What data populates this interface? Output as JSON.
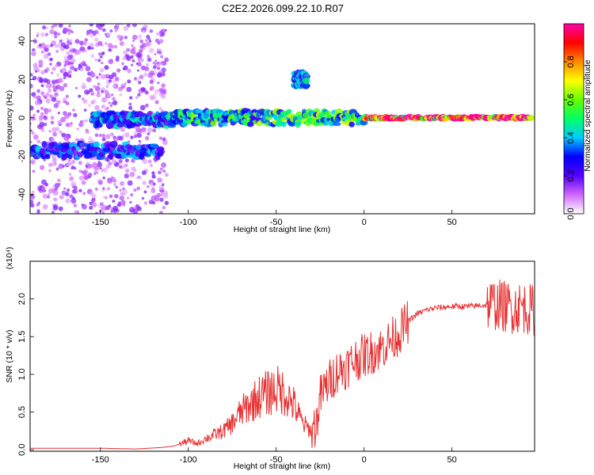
{
  "figure": {
    "title": "C2E2.2026.099.22.10.R07"
  },
  "chart_data": [
    {
      "type": "heatmap",
      "xlabel": "Height of straight line (km)",
      "ylabel": "Frequency (Hz)",
      "xlim": [
        -190,
        97
      ],
      "ylim": [
        -50,
        49
      ],
      "xticks": [
        -150,
        -100,
        -50,
        0,
        50
      ],
      "yticks": [
        -40,
        -20,
        0,
        20,
        40
      ],
      "colorbar": {
        "label": "Normalized spectral amplitude",
        "range": [
          0,
          1
        ],
        "ticks": [
          0.0,
          0.2,
          0.4,
          0.6,
          0.8
        ],
        "colormap": [
          "#ffffff",
          "#cf66ff",
          "#5500ff",
          "#0000ff",
          "#00ccff",
          "#00ff66",
          "#66ff00",
          "#ffff00",
          "#ff8800",
          "#ff0000",
          "#ff00aa"
        ]
      },
      "features": [
        {
          "x_range": [
            -190,
            -112
          ],
          "y_range": [
            -50,
            49
          ],
          "amplitude": 0.1,
          "kind": "scatter-noise"
        },
        {
          "x_range": [
            -190,
            -115
          ],
          "y_center": -17,
          "amplitude": 0.3,
          "kind": "band"
        },
        {
          "x_range": [
            -155,
            -108
          ],
          "y_center": -1,
          "amplitude": 0.35,
          "kind": "band"
        },
        {
          "x_range": [
            -108,
            -60
          ],
          "y_center": 0,
          "amplitude": 0.45,
          "kind": "band"
        },
        {
          "x_range": [
            -60,
            0
          ],
          "y_center": 0,
          "amplitude": 0.5,
          "kind": "band"
        },
        {
          "x_range": [
            0,
            95
          ],
          "y_center": 0,
          "amplitude": 0.95,
          "kind": "carrier"
        },
        {
          "x_range": [
            -40,
            -33
          ],
          "y_center": 20,
          "amplitude": 0.35,
          "kind": "branch"
        }
      ]
    },
    {
      "type": "line",
      "xlabel": "Height of straight line (km)",
      "ylabel": "SNR (10 * v/v)",
      "y_multiplier": "(x10⁴)",
      "xlim": [
        -190,
        97
      ],
      "ylim": [
        -0.02,
        2.5
      ],
      "xticks": [
        -150,
        -100,
        -50,
        0,
        50
      ],
      "yticks": [
        0.0,
        0.5,
        1.0,
        1.5,
        2.0
      ],
      "series": [
        {
          "color": "#e83030",
          "points": [
            [
              -190,
              0.02
            ],
            [
              -170,
              0.02
            ],
            [
              -150,
              0.02
            ],
            [
              -130,
              0.01
            ],
            [
              -115,
              0.03
            ],
            [
              -108,
              0.05
            ],
            [
              -100,
              0.12
            ],
            [
              -95,
              0.08
            ],
            [
              -90,
              0.15
            ],
            [
              -85,
              0.2
            ],
            [
              -80,
              0.25
            ],
            [
              -75,
              0.35
            ],
            [
              -70,
              0.5
            ],
            [
              -65,
              0.6
            ],
            [
              -60,
              0.7
            ],
            [
              -55,
              0.75
            ],
            [
              -50,
              0.8
            ],
            [
              -45,
              0.75
            ],
            [
              -40,
              0.6
            ],
            [
              -35,
              0.35
            ],
            [
              -30,
              0.25
            ],
            [
              -27,
              0.35
            ],
            [
              -25,
              0.7
            ],
            [
              -20,
              0.9
            ],
            [
              -15,
              1.05
            ],
            [
              -10,
              1.1
            ],
            [
              -5,
              1.2
            ],
            [
              0,
              1.25
            ],
            [
              5,
              1.3
            ],
            [
              10,
              1.35
            ],
            [
              15,
              1.45
            ],
            [
              20,
              1.55
            ],
            [
              25,
              1.7
            ],
            [
              30,
              1.8
            ],
            [
              35,
              1.85
            ],
            [
              40,
              1.88
            ],
            [
              50,
              1.9
            ],
            [
              60,
              1.9
            ],
            [
              70,
              1.92
            ],
            [
              75,
              1.93
            ],
            [
              80,
              1.9
            ],
            [
              85,
              1.88
            ],
            [
              90,
              1.9
            ],
            [
              95,
              1.85
            ]
          ]
        }
      ]
    }
  ]
}
